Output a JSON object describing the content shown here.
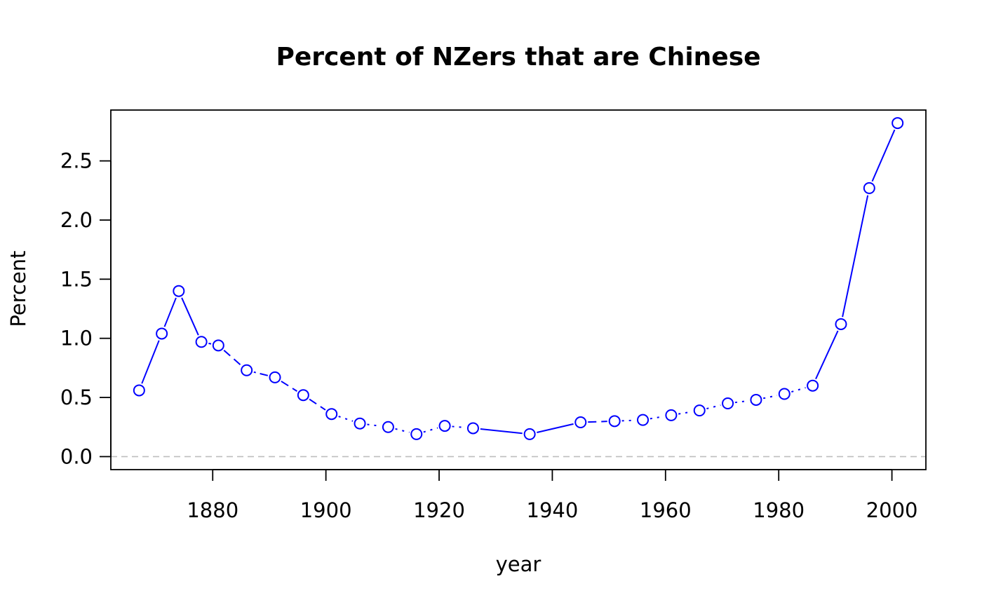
{
  "chart_data": {
    "type": "line",
    "title": "Percent of NZers that are Chinese",
    "xlabel": "year",
    "ylabel": "Percent",
    "xlim": [
      1862,
      2006
    ],
    "ylim": [
      -0.11,
      2.93
    ],
    "xticks": [
      1880,
      1900,
      1920,
      1940,
      1960,
      1980,
      2000
    ],
    "yticks": [
      0.0,
      0.5,
      1.0,
      1.5,
      2.0,
      2.5
    ],
    "ytick_labels": [
      "0.0",
      "0.5",
      "1.0",
      "1.5",
      "2.0",
      "2.5"
    ],
    "grid": false,
    "reference_line": {
      "y": 0,
      "style": "dashed",
      "color": "#bebebe"
    },
    "marker": "open-circle",
    "series": [
      {
        "color": "#0000ff",
        "x": [
          1867,
          1871,
          1874,
          1878,
          1881,
          1886,
          1891,
          1896,
          1901,
          1906,
          1911,
          1916,
          1921,
          1926,
          1936,
          1945,
          1951,
          1956,
          1961,
          1966,
          1971,
          1976,
          1981,
          1986,
          1991,
          1996,
          2001
        ],
        "y": [
          0.56,
          1.04,
          1.4,
          0.97,
          0.94,
          0.73,
          0.67,
          0.52,
          0.36,
          0.28,
          0.25,
          0.19,
          0.26,
          0.24,
          0.19,
          0.29,
          0.3,
          0.31,
          0.35,
          0.39,
          0.45,
          0.48,
          0.53,
          0.6,
          1.12,
          2.27,
          2.82
        ],
        "segment_style": [
          "solid",
          "solid",
          "solid",
          "dashed",
          "dashed",
          "dotdash",
          "dashed",
          "dashed",
          "dotted",
          "dotted",
          "dotted",
          "dotted",
          "dotted",
          "solid",
          "solid",
          "dashed",
          "dotted",
          "dotted",
          "dotted",
          "dotted",
          "dotted",
          "dotted",
          "dotted",
          "solid",
          "solid",
          "solid"
        ]
      }
    ]
  }
}
